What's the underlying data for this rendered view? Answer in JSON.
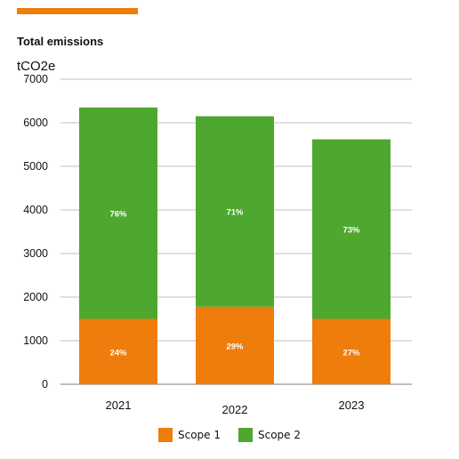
{
  "colors": {
    "accent": "#ee7d0b",
    "scope1": "#ee7d0b",
    "scope2": "#4ea72e",
    "grid": "#bfbfbf"
  },
  "chart_data": {
    "type": "bar",
    "stacked": true,
    "title": "Total emissions",
    "ylabel": "tCO2e",
    "xlabel": "",
    "categories": [
      "2021",
      "2022",
      "2023"
    ],
    "series": [
      {
        "name": "Scope 1",
        "values": [
          1500,
          1780,
          1500
        ],
        "labels": [
          "24%",
          "29%",
          "27%"
        ]
      },
      {
        "name": "Scope 2",
        "values": [
          4850,
          4370,
          4120
        ],
        "labels": [
          "76%",
          "71%",
          "73%"
        ]
      }
    ],
    "ylim": [
      0,
      7000
    ],
    "yticks": [
      0,
      1000,
      2000,
      3000,
      4000,
      5000,
      6000,
      7000
    ],
    "grid": true,
    "legend": "bottom"
  }
}
